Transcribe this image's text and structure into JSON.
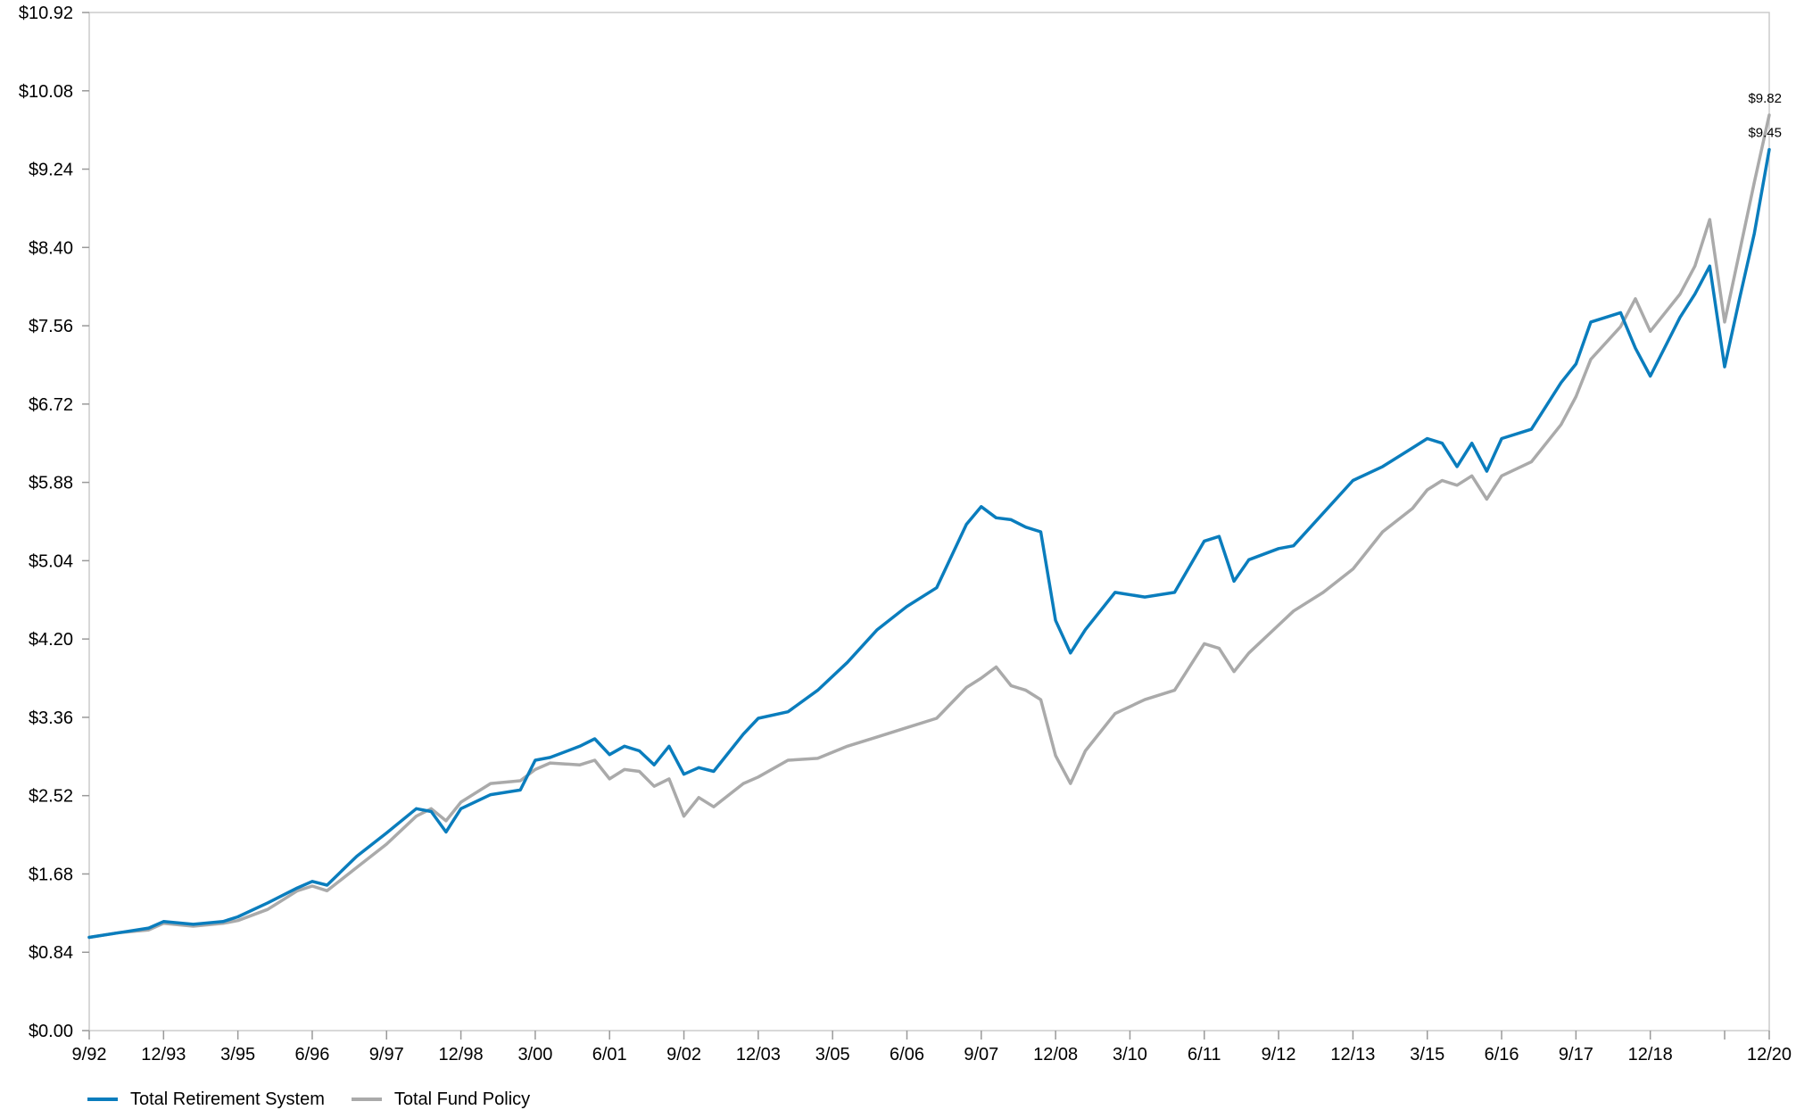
{
  "chart_data": {
    "type": "line",
    "title": "",
    "xlabel": "",
    "ylabel": "",
    "ylim": [
      0,
      10.92
    ],
    "y_ticks": [
      "$0.00",
      "$0.84",
      "$1.68",
      "$2.52",
      "$3.36",
      "$4.20",
      "$5.04",
      "$5.88",
      "$6.72",
      "$7.56",
      "$8.40",
      "$9.24",
      "$10.08",
      "$10.92"
    ],
    "x_ticks": [
      "9/92",
      "12/93",
      "3/95",
      "6/96",
      "9/97",
      "12/98",
      "3/00",
      "6/01",
      "9/02",
      "12/03",
      "3/05",
      "6/06",
      "9/07",
      "12/08",
      "3/10",
      "6/11",
      "9/12",
      "12/13",
      "3/15",
      "6/16",
      "9/17",
      "12/18",
      "12/20"
    ],
    "x_range": [
      "1992-09",
      "2020-12"
    ],
    "grid": false,
    "legend_position": "bottom-left",
    "series": [
      {
        "name": "Total Retirement System",
        "color": "#0a7dbd",
        "x": [
          "1992-09",
          "1993-03",
          "1993-09",
          "1993-12",
          "1994-06",
          "1994-12",
          "1995-03",
          "1995-09",
          "1996-03",
          "1996-06",
          "1996-09",
          "1997-03",
          "1997-09",
          "1998-03",
          "1998-06",
          "1998-09",
          "1998-12",
          "1999-06",
          "1999-12",
          "2000-03",
          "2000-06",
          "2000-12",
          "2001-03",
          "2001-06",
          "2001-09",
          "2001-12",
          "2002-03",
          "2002-06",
          "2002-09",
          "2002-12",
          "2003-03",
          "2003-09",
          "2003-12",
          "2004-06",
          "2004-12",
          "2005-06",
          "2005-12",
          "2006-06",
          "2006-12",
          "2007-06",
          "2007-09",
          "2007-12",
          "2008-03",
          "2008-06",
          "2008-09",
          "2008-12",
          "2009-03",
          "2009-06",
          "2009-12",
          "2010-06",
          "2010-12",
          "2011-06",
          "2011-09",
          "2011-12",
          "2012-03",
          "2012-09",
          "2012-12",
          "2013-06",
          "2013-12",
          "2014-06",
          "2014-12",
          "2015-03",
          "2015-06",
          "2015-09",
          "2015-12",
          "2016-03",
          "2016-06",
          "2016-12",
          "2017-06",
          "2017-09",
          "2017-12",
          "2018-06",
          "2018-09",
          "2018-12",
          "2019-06",
          "2019-09",
          "2019-12",
          "2020-03",
          "2020-06",
          "2020-09",
          "2020-12"
        ],
        "values": [
          1.0,
          1.05,
          1.1,
          1.17,
          1.14,
          1.17,
          1.22,
          1.37,
          1.53,
          1.6,
          1.56,
          1.87,
          2.12,
          2.38,
          2.35,
          2.13,
          2.38,
          2.53,
          2.58,
          2.9,
          2.93,
          3.05,
          3.13,
          2.96,
          3.05,
          3.0,
          2.85,
          3.05,
          2.75,
          2.82,
          2.78,
          3.18,
          3.35,
          3.42,
          3.65,
          3.95,
          4.3,
          4.55,
          4.75,
          5.43,
          5.62,
          5.5,
          5.48,
          5.4,
          5.35,
          4.4,
          4.05,
          4.3,
          4.7,
          4.65,
          4.7,
          5.25,
          5.3,
          4.82,
          5.05,
          5.17,
          5.2,
          5.55,
          5.9,
          6.05,
          6.25,
          6.35,
          6.3,
          6.05,
          6.3,
          6.0,
          6.35,
          6.45,
          6.95,
          7.15,
          7.6,
          7.7,
          7.32,
          7.02,
          7.65,
          7.9,
          8.2,
          7.12,
          7.85,
          8.55,
          9.45
        ]
      },
      {
        "name": "Total Fund Policy",
        "color": "#aaaaaa",
        "x": [
          "1992-09",
          "1993-03",
          "1993-09",
          "1993-12",
          "1994-06",
          "1994-12",
          "1995-03",
          "1995-09",
          "1996-03",
          "1996-06",
          "1996-09",
          "1997-03",
          "1997-09",
          "1998-03",
          "1998-06",
          "1998-09",
          "1998-12",
          "1999-06",
          "1999-12",
          "2000-03",
          "2000-06",
          "2000-12",
          "2001-03",
          "2001-06",
          "2001-09",
          "2001-12",
          "2002-03",
          "2002-06",
          "2002-09",
          "2002-12",
          "2003-03",
          "2003-09",
          "2003-12",
          "2004-06",
          "2004-12",
          "2005-06",
          "2005-12",
          "2006-06",
          "2006-12",
          "2007-06",
          "2007-09",
          "2007-12",
          "2008-03",
          "2008-06",
          "2008-09",
          "2008-12",
          "2009-03",
          "2009-06",
          "2009-12",
          "2010-06",
          "2010-12",
          "2011-06",
          "2011-09",
          "2011-12",
          "2012-03",
          "2012-09",
          "2012-12",
          "2013-06",
          "2013-12",
          "2014-06",
          "2014-12",
          "2015-03",
          "2015-06",
          "2015-09",
          "2015-12",
          "2016-03",
          "2016-06",
          "2016-12",
          "2017-06",
          "2017-09",
          "2017-12",
          "2018-06",
          "2018-09",
          "2018-12",
          "2019-06",
          "2019-09",
          "2019-12",
          "2020-03",
          "2020-06",
          "2020-09",
          "2020-12"
        ],
        "values": [
          1.0,
          1.05,
          1.08,
          1.15,
          1.12,
          1.15,
          1.18,
          1.3,
          1.5,
          1.55,
          1.5,
          1.75,
          2.0,
          2.3,
          2.38,
          2.25,
          2.45,
          2.65,
          2.68,
          2.8,
          2.87,
          2.85,
          2.9,
          2.7,
          2.8,
          2.78,
          2.62,
          2.7,
          2.3,
          2.5,
          2.4,
          2.65,
          2.72,
          2.9,
          2.92,
          3.05,
          3.15,
          3.25,
          3.35,
          3.68,
          3.78,
          3.9,
          3.7,
          3.65,
          3.55,
          2.95,
          2.65,
          3.0,
          3.4,
          3.55,
          3.65,
          4.15,
          4.1,
          3.85,
          4.05,
          4.35,
          4.5,
          4.7,
          4.95,
          5.35,
          5.6,
          5.8,
          5.9,
          5.85,
          5.95,
          5.7,
          5.95,
          6.1,
          6.5,
          6.8,
          7.2,
          7.55,
          7.85,
          7.5,
          7.9,
          8.2,
          8.7,
          7.6,
          8.35,
          9.1,
          9.82
        ]
      }
    ],
    "end_labels": [
      "$9.82",
      "$9.45"
    ]
  },
  "legend": {
    "items": [
      {
        "label": "Total Retirement System",
        "color": "#0a7dbd"
      },
      {
        "label": "Total Fund Policy",
        "color": "#aaaaaa"
      }
    ]
  }
}
